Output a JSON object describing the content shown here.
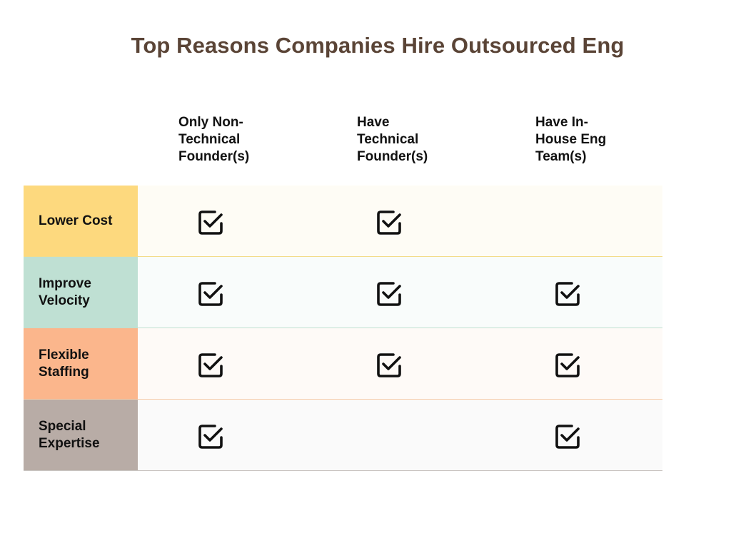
{
  "chart_data": {
    "type": "table",
    "title": "Top Reasons Companies Hire Outsourced Eng",
    "columns": [
      [
        "Only Non-",
        "Technical",
        "Founder(s)"
      ],
      [
        "Have",
        "Technical",
        "Founder(s)"
      ],
      [
        "Have In-",
        "House Eng",
        "Team(s)"
      ]
    ],
    "rows": [
      {
        "label": [
          "Lower Cost"
        ],
        "checks": [
          true,
          true,
          false
        ],
        "label_color": "#fdd97e",
        "row_color": "#fefcf5",
        "line_color": "#f3dc8a"
      },
      {
        "label": [
          "Improve",
          "Velocity"
        ],
        "checks": [
          true,
          true,
          true
        ],
        "label_color": "#bfe0d3",
        "row_color": "#f9fcfb",
        "line_color": "#bfe0cf"
      },
      {
        "label": [
          "Flexible",
          "Staffing"
        ],
        "checks": [
          true,
          true,
          true
        ],
        "label_color": "#fbb68c",
        "row_color": "#fefaf7",
        "line_color": "#f6cba8"
      },
      {
        "label": [
          "Special",
          "Expertise"
        ],
        "checks": [
          true,
          false,
          true
        ],
        "label_color": "#b8aca6",
        "row_color": "#fafafa",
        "line_color": "#c9c4c1"
      }
    ]
  }
}
